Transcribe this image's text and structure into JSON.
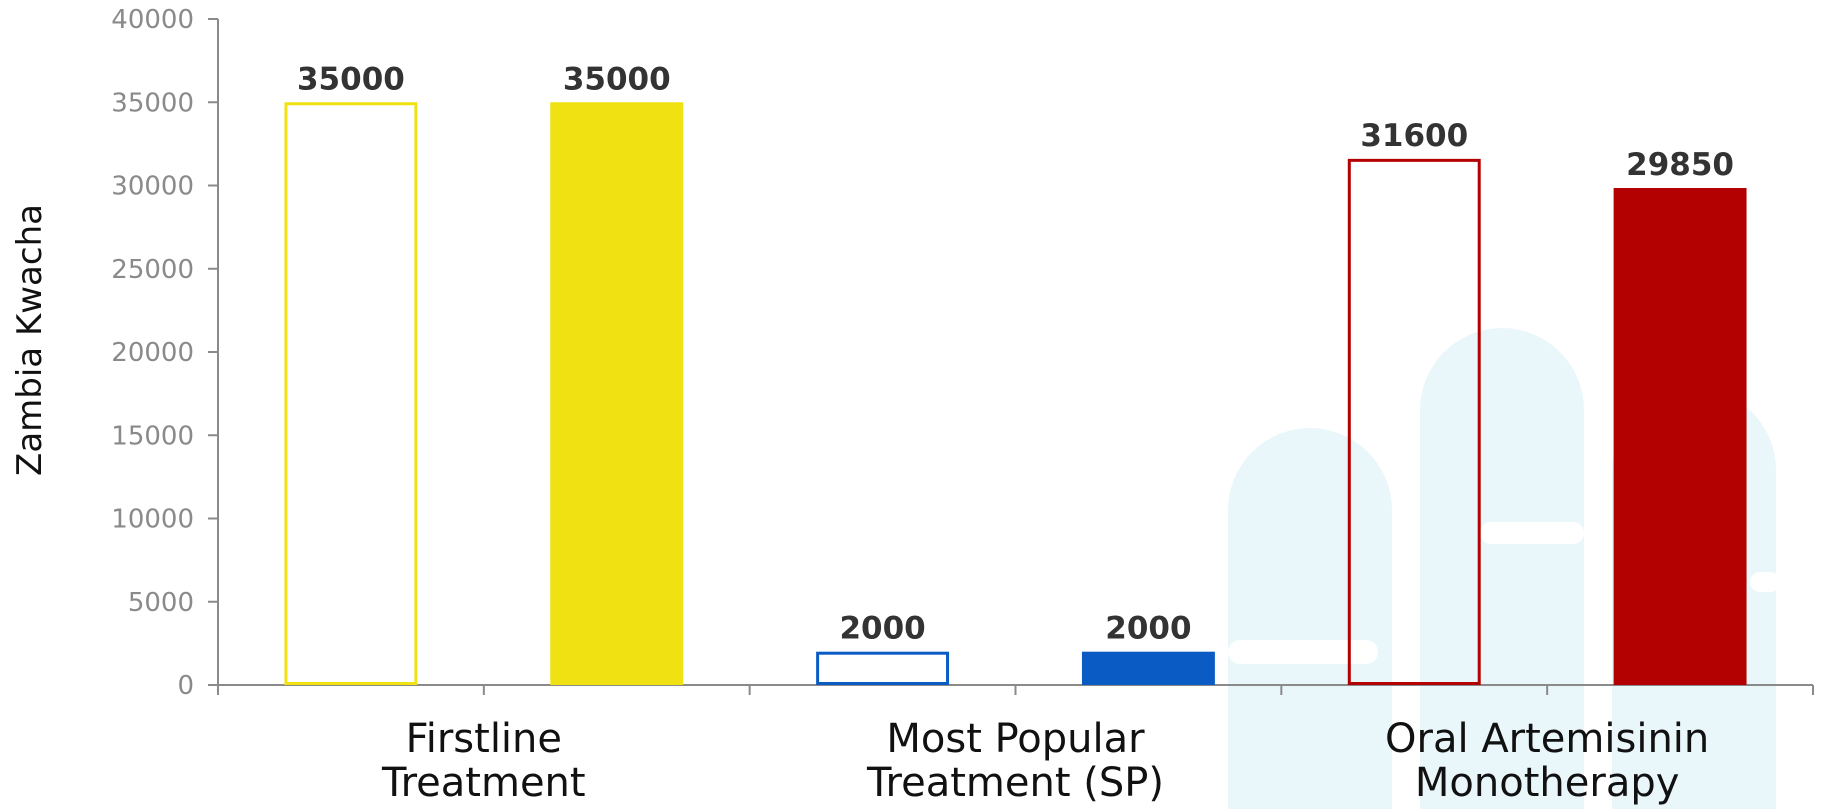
{
  "chart_data": {
    "type": "bar",
    "ylabel": "Zambia Kwacha",
    "ylim": [
      0,
      40000
    ],
    "yticks": [
      0,
      5000,
      10000,
      15000,
      20000,
      25000,
      30000,
      35000,
      40000
    ],
    "categories": [
      "Firstline\nTreatment",
      "Most Popular\nTreatment (SP)",
      "Oral Artemisinin\nMonotherapy"
    ],
    "series": [
      {
        "values": [
          35000,
          2000,
          31600
        ],
        "style": "outline"
      },
      {
        "values": [
          35000,
          2000,
          29850
        ],
        "style": "filled"
      }
    ],
    "category_colors": [
      "#f0e112",
      "#0a5bc4",
      "#b30000"
    ],
    "grid": false,
    "legend": "none"
  }
}
